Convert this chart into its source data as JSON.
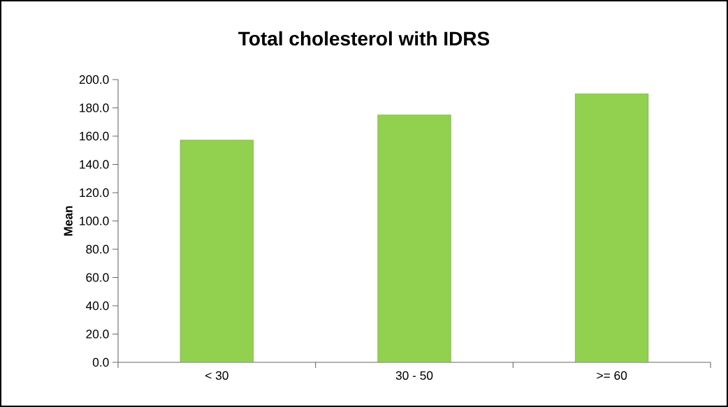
{
  "chart_data": {
    "type": "bar",
    "title": "Total cholesterol with IDRS",
    "ylabel": "Mean",
    "categories": [
      "< 30",
      "30 - 50",
      ">= 60"
    ],
    "values": [
      157.2,
      175.0,
      190.0
    ],
    "color": "#92d050",
    "ylim": [
      0,
      200
    ],
    "yticks": [
      {
        "value": 0,
        "label": "0.0"
      },
      {
        "value": 20,
        "label": "20.0"
      },
      {
        "value": 40,
        "label": "40.0"
      },
      {
        "value": 60,
        "label": "60.0"
      },
      {
        "value": 80,
        "label": "80.0"
      },
      {
        "value": 100,
        "label": "100.0"
      },
      {
        "value": 120,
        "label": "120.0"
      },
      {
        "value": 140,
        "label": "140.0"
      },
      {
        "value": 160,
        "label": "160.0"
      },
      {
        "value": 180,
        "label": "180.0"
      },
      {
        "value": 200,
        "label": "200.0"
      }
    ],
    "grid": false
  }
}
